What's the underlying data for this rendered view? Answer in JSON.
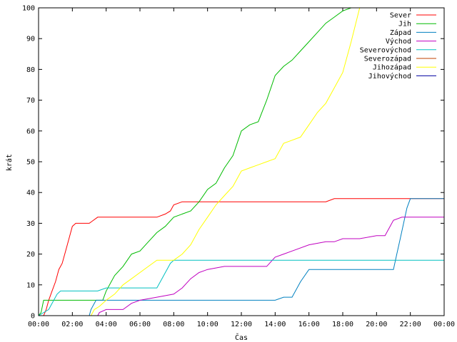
{
  "chart_data": {
    "type": "line",
    "title": "",
    "xlabel": "Čas",
    "ylabel": "krát",
    "xlim": [
      0,
      24
    ],
    "ylim": [
      0,
      100
    ],
    "x_ticks": [
      "00:00",
      "02:00",
      "04:00",
      "06:00",
      "08:00",
      "10:00",
      "12:00",
      "14:00",
      "16:00",
      "18:00",
      "20:00",
      "22:00",
      "00:00"
    ],
    "y_ticks": [
      0,
      10,
      20,
      30,
      40,
      50,
      60,
      70,
      80,
      90,
      100
    ],
    "grid": false,
    "legend_position": "top-right",
    "series": [
      {
        "name": "Sever",
        "color": "#ff0000",
        "x": [
          0,
          0.3,
          0.45,
          0.6,
          0.8,
          1.0,
          1.2,
          1.4,
          1.6,
          1.8,
          2.0,
          2.2,
          2.5,
          3.0,
          3.5,
          4.0,
          5.0,
          6.0,
          7.0,
          7.5,
          7.8,
          8.0,
          8.5,
          9.0,
          10.0,
          12.0,
          14.0,
          16.0,
          17.0,
          17.5,
          18.0,
          20.0,
          22.0,
          24.0
        ],
        "y": [
          0,
          0,
          2,
          5,
          8,
          11,
          15,
          17,
          21,
          25,
          29,
          30,
          30,
          30,
          32,
          32,
          32,
          32,
          32,
          33,
          34,
          36,
          37,
          37,
          37,
          37,
          37,
          37,
          37,
          38,
          38,
          38,
          38,
          38
        ]
      },
      {
        "name": "Jih",
        "color": "#00bb00",
        "x": [
          0,
          0.15,
          0.3,
          1.0,
          2.0,
          3.5,
          3.8,
          4.0,
          4.5,
          5.0,
          5.5,
          6.0,
          6.5,
          7.0,
          7.5,
          8.0,
          8.5,
          9.0,
          9.5,
          10.0,
          10.5,
          11.0,
          11.5,
          12.0,
          12.5,
          13.0,
          13.5,
          14.0,
          14.5,
          15.0,
          15.5,
          16.0,
          16.5,
          17.0,
          17.5,
          18.0,
          18.5,
          24.0
        ],
        "y": [
          0,
          1,
          5,
          5,
          5,
          5,
          5,
          8,
          13,
          16,
          20,
          21,
          24,
          27,
          29,
          32,
          33,
          34,
          37,
          41,
          43,
          48,
          52,
          60,
          62,
          63,
          70,
          78,
          81,
          83,
          86,
          89,
          92,
          95,
          97,
          99,
          100,
          100
        ]
      },
      {
        "name": "Západ",
        "color": "#0080c0",
        "x": [
          0,
          3.0,
          3.1,
          3.4,
          4.0,
          6.0,
          8.0,
          10.0,
          12.0,
          13.0,
          14.0,
          14.5,
          15.0,
          15.5,
          16.0,
          16.5,
          17.0,
          18.0,
          19.0,
          20.0,
          21.0,
          21.2,
          21.4,
          21.6,
          21.8,
          22.0,
          24.0
        ],
        "y": [
          0,
          0,
          2,
          5,
          5,
          5,
          5,
          5,
          5,
          5,
          5,
          6,
          6,
          11,
          15,
          15,
          15,
          15,
          15,
          15,
          15,
          20,
          25,
          30,
          35,
          38,
          38
        ]
      },
      {
        "name": "Východ",
        "color": "#c000c0",
        "x": [
          0,
          3.5,
          3.6,
          4.0,
          5.0,
          5.5,
          6.0,
          7.0,
          8.0,
          8.5,
          9.0,
          9.5,
          10.0,
          11.0,
          12.0,
          13.0,
          13.5,
          14.0,
          14.5,
          15.0,
          16.0,
          17.0,
          17.5,
          18.0,
          19.0,
          20.0,
          20.5,
          20.8,
          21.0,
          21.5,
          22.0,
          24.0
        ],
        "y": [
          0,
          0,
          1,
          2,
          2,
          4,
          5,
          6,
          7,
          9,
          12,
          14,
          15,
          16,
          16,
          16,
          16,
          19,
          20,
          21,
          23,
          24,
          24,
          25,
          25,
          26,
          26,
          29,
          31,
          32,
          32,
          32
        ]
      },
      {
        "name": "Severovýchod",
        "color": "#00c0c0",
        "x": [
          0,
          0.6,
          0.9,
          1.1,
          1.3,
          2.0,
          3.0,
          3.5,
          4.0,
          5.0,
          6.0,
          7.0,
          7.3,
          7.6,
          7.8,
          8.0,
          9.0,
          12.0,
          16.0,
          20.0,
          24.0
        ],
        "y": [
          0,
          2,
          5,
          7,
          8,
          8,
          8,
          8,
          9,
          9,
          9,
          9,
          12,
          15,
          17,
          18,
          18,
          18,
          18,
          18,
          18
        ]
      },
      {
        "name": "Severozápad",
        "color": "#c04000",
        "x": [],
        "y": []
      },
      {
        "name": "Jihozápad",
        "color": "#ffff00",
        "x": [
          0,
          3.1,
          3.3,
          3.6,
          4.0,
          4.5,
          5.0,
          5.5,
          6.0,
          6.5,
          7.0,
          7.5,
          8.0,
          8.5,
          9.0,
          9.5,
          10.0,
          10.5,
          11.0,
          11.5,
          12.0,
          12.5,
          13.0,
          13.5,
          14.0,
          14.5,
          15.0,
          15.5,
          16.0,
          16.5,
          17.0,
          17.5,
          18.0,
          18.5,
          19.0,
          24.0
        ],
        "y": [
          0,
          0,
          2,
          3,
          5,
          7,
          10,
          12,
          14,
          16,
          18,
          18,
          18,
          20,
          23,
          28,
          32,
          36,
          39,
          42,
          47,
          48,
          49,
          50,
          51,
          56,
          57,
          58,
          62,
          66,
          69,
          74,
          79,
          89,
          100,
          100
        ]
      },
      {
        "name": "Jihovýchod",
        "color": "#0000a0",
        "x": [],
        "y": []
      }
    ]
  }
}
